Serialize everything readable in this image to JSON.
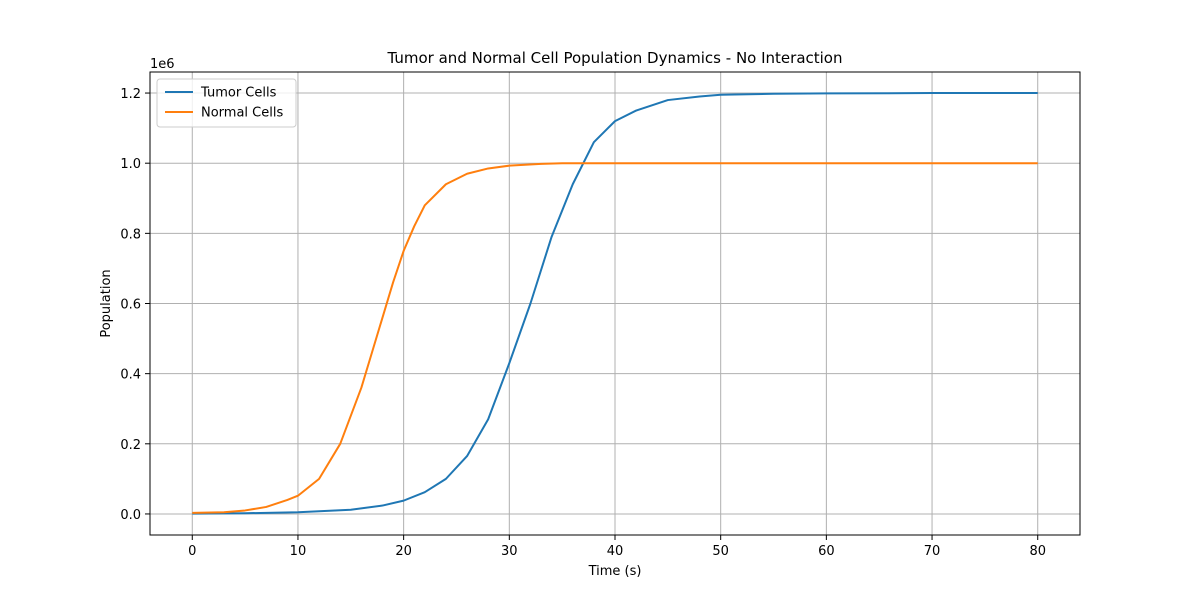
{
  "chart_data": {
    "type": "line",
    "title": "Tumor and Normal Cell Population Dynamics - No Interaction",
    "xlabel": "Time (s)",
    "ylabel": "Population",
    "y_offset_label": "1e6",
    "xlim": [
      -4,
      84
    ],
    "ylim": [
      -0.06,
      1.26
    ],
    "x_ticks": [
      0,
      10,
      20,
      30,
      40,
      50,
      60,
      70,
      80
    ],
    "x_tick_labels": [
      "0",
      "10",
      "20",
      "30",
      "40",
      "50",
      "60",
      "70",
      "80"
    ],
    "y_ticks": [
      0.0,
      0.2,
      0.4,
      0.6,
      0.8,
      1.0,
      1.2
    ],
    "y_tick_labels": [
      "0.0",
      "0.2",
      "0.4",
      "0.6",
      "0.8",
      "1.0",
      "1.2"
    ],
    "grid": true,
    "legend_position": "upper-left",
    "series": [
      {
        "name": "Tumor Cells",
        "color": "#1f77b4",
        "x": [
          0,
          5,
          10,
          15,
          18,
          20,
          22,
          24,
          26,
          28,
          30,
          32,
          34,
          36,
          38,
          40,
          42,
          45,
          48,
          50,
          55,
          60,
          70,
          80
        ],
        "y": [
          0.001,
          0.002,
          0.005,
          0.012,
          0.024,
          0.038,
          0.062,
          0.1,
          0.165,
          0.27,
          0.43,
          0.6,
          0.79,
          0.94,
          1.06,
          1.12,
          1.15,
          1.18,
          1.19,
          1.195,
          1.198,
          1.199,
          1.2,
          1.2
        ]
      },
      {
        "name": "Normal Cells",
        "color": "#ff7f0e",
        "x": [
          0,
          3,
          5,
          7,
          9,
          10,
          12,
          14,
          16,
          17,
          18,
          19,
          20,
          21,
          22,
          24,
          26,
          28,
          30,
          33,
          35,
          40,
          50,
          60,
          80
        ],
        "y": [
          0.003,
          0.005,
          0.01,
          0.02,
          0.04,
          0.052,
          0.1,
          0.2,
          0.36,
          0.46,
          0.56,
          0.66,
          0.75,
          0.82,
          0.88,
          0.94,
          0.97,
          0.985,
          0.993,
          0.998,
          1.0,
          1.0,
          1.0,
          1.0,
          1.0
        ]
      }
    ]
  }
}
